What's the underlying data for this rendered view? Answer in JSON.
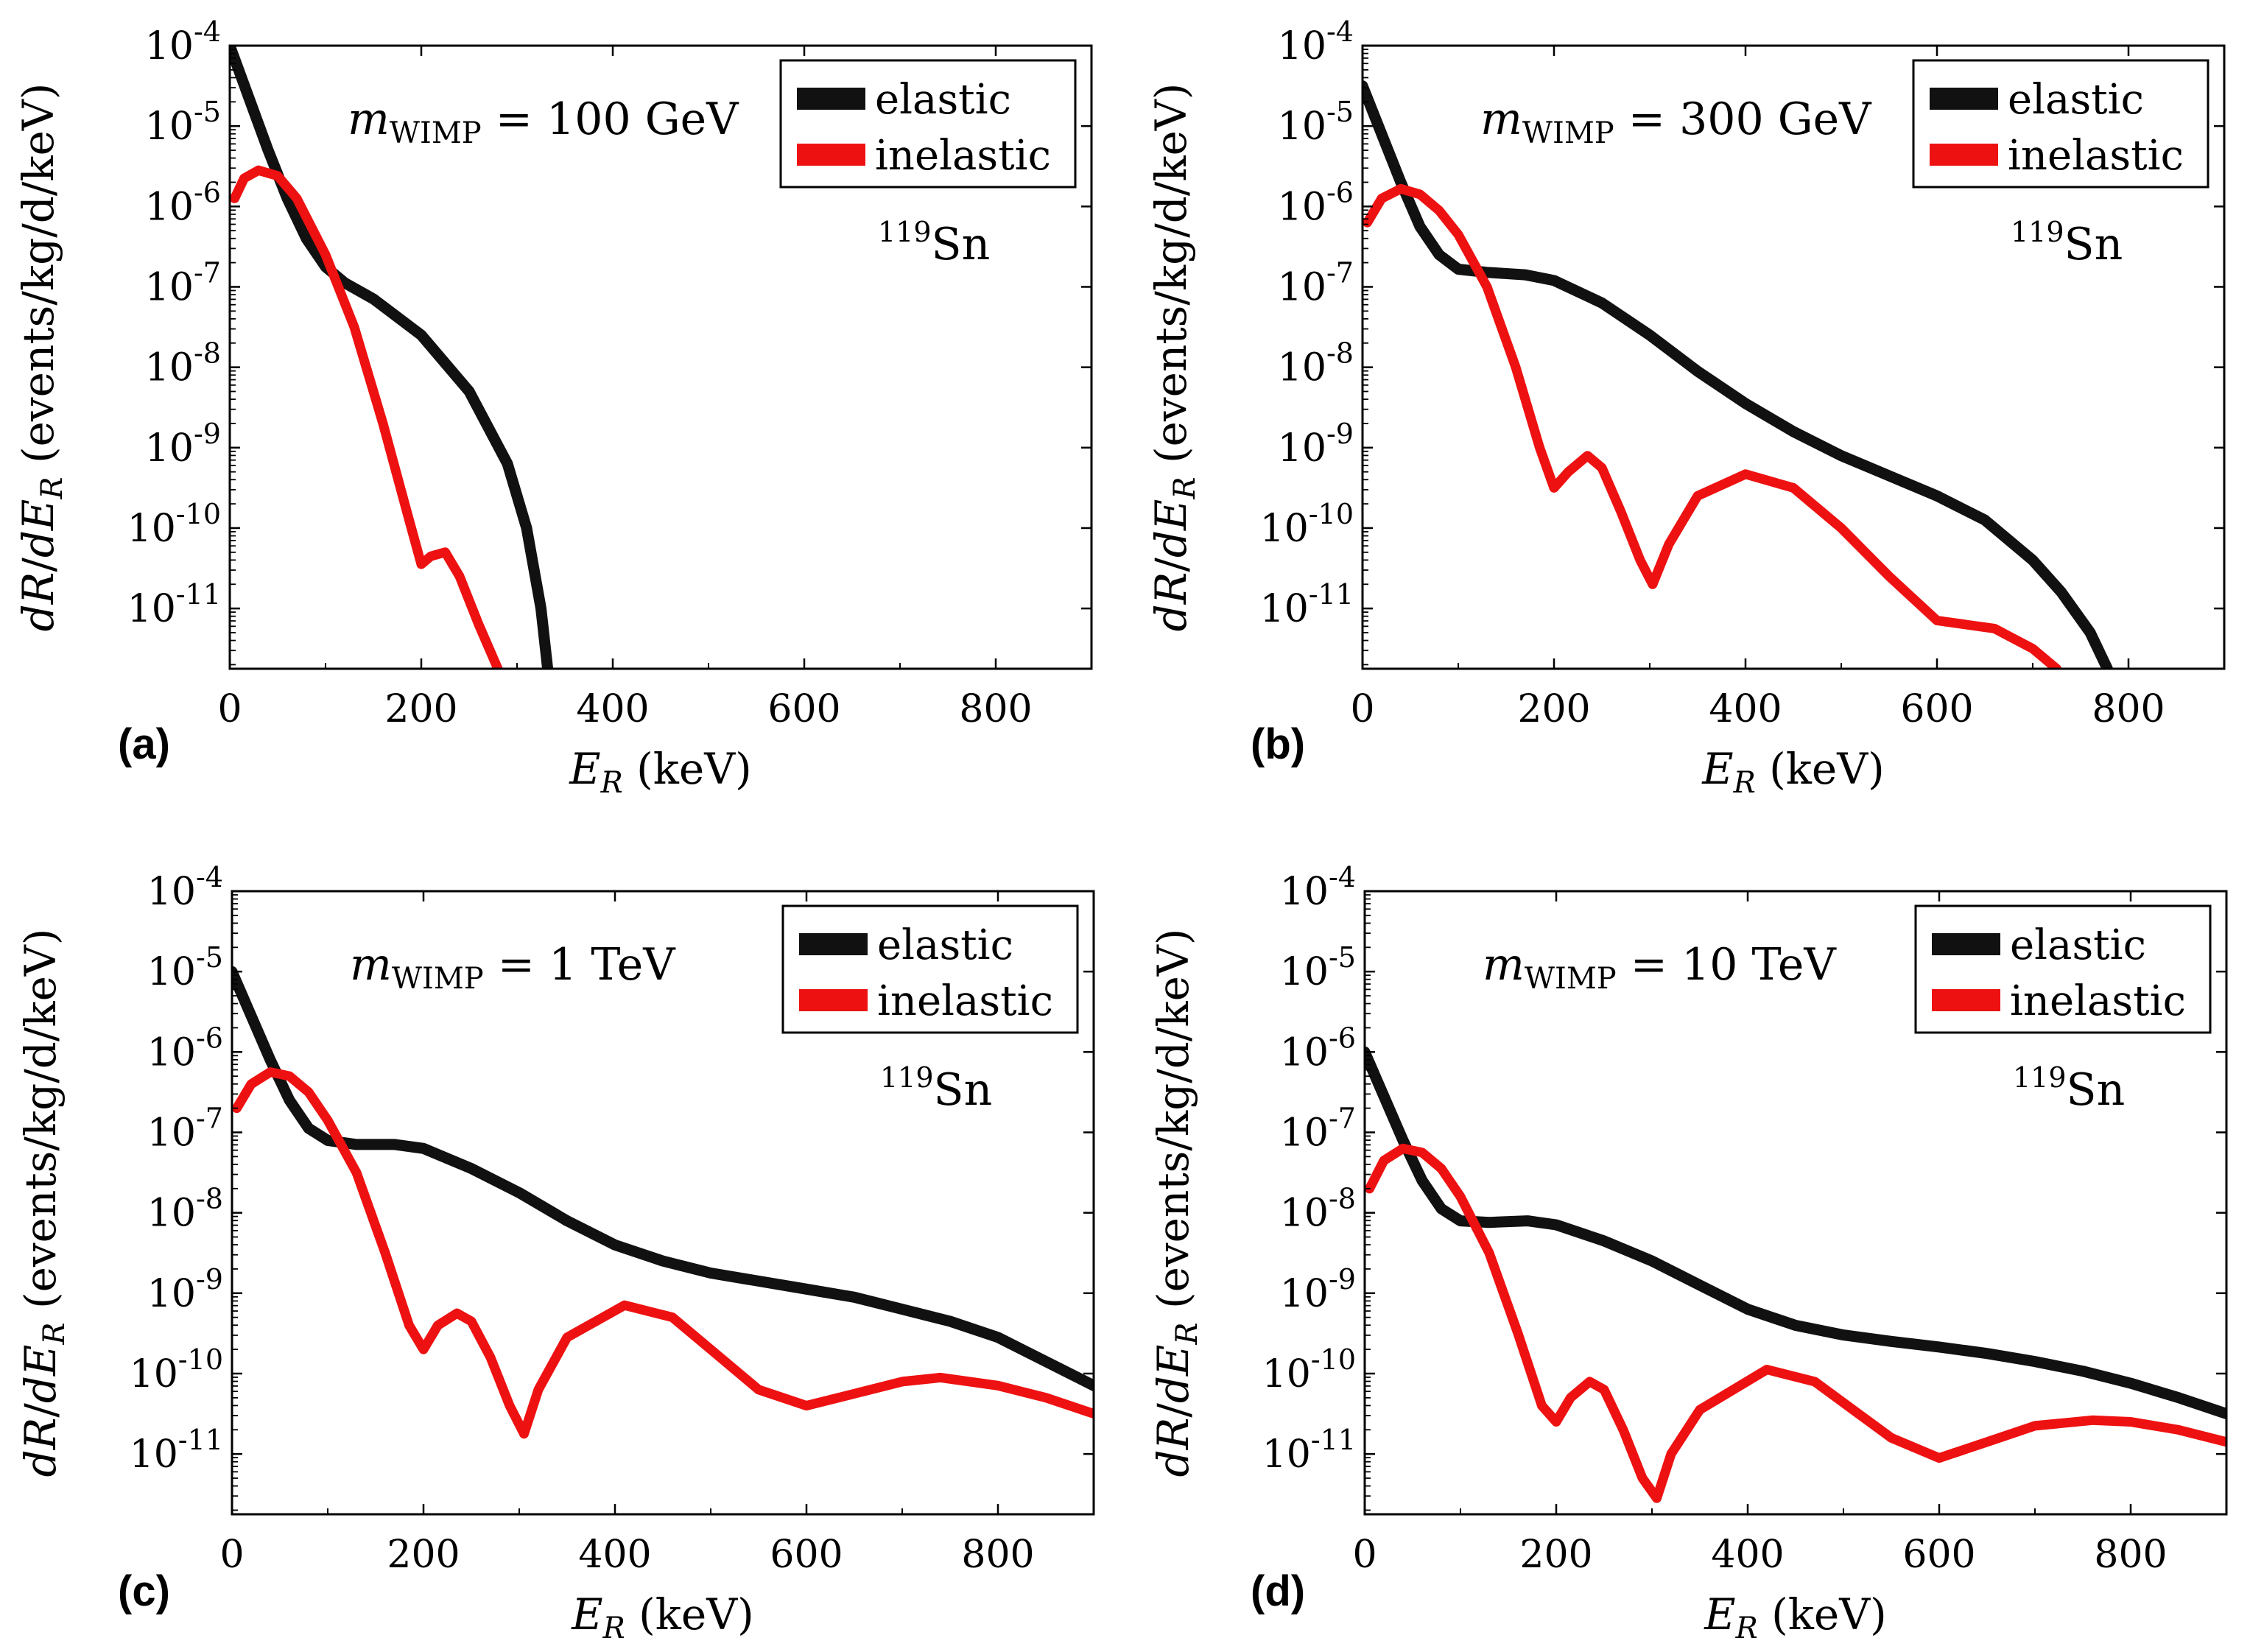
{
  "chart_data": [
    {
      "type": "line",
      "panel_label": "(a)",
      "mass_label": "m_WIMP = 100 GeV",
      "mass_value": "100",
      "mass_unit": "GeV",
      "isotope": "119Sn",
      "isotope_mass_number": "119",
      "isotope_symbol": "Sn",
      "xlabel": "E_R (keV)",
      "ylabel": "dR/dE_R (events/kg/d/keV)",
      "xlim": [
        0,
        900
      ],
      "ylim_log10": [
        -11.75,
        -4
      ],
      "xticks": [
        0,
        200,
        400,
        600,
        800
      ],
      "yticks_log10": [
        -4,
        -5,
        -6,
        -7,
        -8,
        -9,
        -10,
        -11
      ],
      "legend": [
        "elastic",
        "inelastic"
      ],
      "series": [
        {
          "name": "elastic",
          "color": "#111111",
          "x": [
            0,
            20,
            40,
            60,
            80,
            100,
            120,
            150,
            200,
            250,
            290,
            310,
            325,
            332
          ],
          "log10y": [
            -4.0,
            -4.65,
            -5.3,
            -5.9,
            -6.4,
            -6.75,
            -6.95,
            -7.15,
            -7.6,
            -8.3,
            -9.2,
            -10.0,
            -11.0,
            -11.75
          ]
        },
        {
          "name": "inelastic",
          "color": "#ee1111",
          "x": [
            5,
            15,
            30,
            50,
            70,
            100,
            130,
            160,
            185,
            200,
            210,
            225,
            240,
            260,
            280
          ],
          "log10y": [
            -5.9,
            -5.65,
            -5.55,
            -5.62,
            -5.9,
            -6.6,
            -7.5,
            -8.7,
            -9.8,
            -10.45,
            -10.35,
            -10.3,
            -10.6,
            -11.2,
            -11.75
          ]
        }
      ]
    },
    {
      "type": "line",
      "panel_label": "(b)",
      "mass_label": "m_WIMP = 300 GeV",
      "mass_value": "300",
      "mass_unit": "GeV",
      "isotope": "119Sn",
      "isotope_mass_number": "119",
      "isotope_symbol": "Sn",
      "xlabel": "E_R (keV)",
      "ylabel": "dR/dE_R (events/kg/d/keV)",
      "xlim": [
        0,
        900
      ],
      "ylim_log10": [
        -11.75,
        -4
      ],
      "xticks": [
        0,
        200,
        400,
        600,
        800
      ],
      "yticks_log10": [
        -4,
        -5,
        -6,
        -7,
        -8,
        -9,
        -10,
        -11
      ],
      "legend": [
        "elastic",
        "inelastic"
      ],
      "series": [
        {
          "name": "elastic",
          "color": "#111111",
          "x": [
            0,
            20,
            40,
            60,
            80,
            100,
            130,
            170,
            200,
            250,
            300,
            350,
            400,
            450,
            500,
            550,
            600,
            650,
            700,
            730,
            760,
            778
          ],
          "log10y": [
            -4.5,
            -5.1,
            -5.7,
            -6.25,
            -6.6,
            -6.78,
            -6.82,
            -6.85,
            -6.92,
            -7.2,
            -7.6,
            -8.05,
            -8.45,
            -8.8,
            -9.1,
            -9.35,
            -9.6,
            -9.9,
            -10.4,
            -10.8,
            -11.3,
            -11.75
          ]
        },
        {
          "name": "inelastic",
          "color": "#ee1111",
          "x": [
            5,
            20,
            40,
            60,
            80,
            100,
            130,
            160,
            185,
            200,
            215,
            235,
            250,
            270,
            290,
            303,
            320,
            350,
            400,
            450,
            500,
            550,
            600,
            630,
            660,
            700,
            725
          ],
          "log10y": [
            -6.2,
            -5.9,
            -5.78,
            -5.85,
            -6.05,
            -6.35,
            -7.0,
            -8.0,
            -9.0,
            -9.5,
            -9.3,
            -9.1,
            -9.25,
            -9.8,
            -10.4,
            -10.7,
            -10.2,
            -9.6,
            -9.33,
            -9.5,
            -10.0,
            -10.6,
            -11.15,
            -11.2,
            -11.25,
            -11.5,
            -11.75
          ]
        }
      ]
    },
    {
      "type": "line",
      "panel_label": "(c)",
      "mass_label": "m_WIMP = 1 TeV",
      "mass_value": "1",
      "mass_unit": "TeV",
      "isotope": "119Sn",
      "isotope_mass_number": "119",
      "isotope_symbol": "Sn",
      "xlabel": "E_R (keV)",
      "ylabel": "dR/dE_R (events/kg/d/keV)",
      "xlim": [
        0,
        900
      ],
      "ylim_log10": [
        -11.75,
        -4
      ],
      "xticks": [
        0,
        200,
        400,
        600,
        800
      ],
      "yticks_log10": [
        -4,
        -5,
        -6,
        -7,
        -8,
        -9,
        -10,
        -11
      ],
      "legend": [
        "elastic",
        "inelastic"
      ],
      "series": [
        {
          "name": "elastic",
          "color": "#111111",
          "x": [
            0,
            20,
            40,
            60,
            80,
            100,
            130,
            170,
            200,
            250,
            300,
            350,
            400,
            450,
            500,
            550,
            600,
            650,
            700,
            750,
            800,
            850,
            900
          ],
          "log10y": [
            -5.0,
            -5.55,
            -6.1,
            -6.6,
            -6.95,
            -7.1,
            -7.15,
            -7.15,
            -7.2,
            -7.45,
            -7.75,
            -8.1,
            -8.4,
            -8.6,
            -8.75,
            -8.85,
            -8.95,
            -9.05,
            -9.2,
            -9.35,
            -9.55,
            -9.85,
            -10.15
          ]
        },
        {
          "name": "inelastic",
          "color": "#ee1111",
          "x": [
            5,
            20,
            40,
            60,
            80,
            100,
            130,
            160,
            185,
            200,
            215,
            235,
            250,
            270,
            290,
            305,
            320,
            350,
            410,
            460,
            500,
            550,
            600,
            650,
            700,
            740,
            800,
            850,
            900
          ],
          "log10y": [
            -6.7,
            -6.4,
            -6.25,
            -6.3,
            -6.5,
            -6.85,
            -7.5,
            -8.5,
            -9.4,
            -9.7,
            -9.4,
            -9.25,
            -9.35,
            -9.8,
            -10.4,
            -10.75,
            -10.2,
            -9.55,
            -9.15,
            -9.3,
            -9.7,
            -10.2,
            -10.4,
            -10.25,
            -10.1,
            -10.05,
            -10.15,
            -10.3,
            -10.5
          ]
        }
      ]
    },
    {
      "type": "line",
      "panel_label": "(d)",
      "mass_label": "m_WIMP = 10 TeV",
      "mass_value": "10",
      "mass_unit": "TeV",
      "isotope": "119Sn",
      "isotope_mass_number": "119",
      "isotope_symbol": "Sn",
      "xlabel": "E_R (keV)",
      "ylabel": "dR/dE_R (events/kg/d/keV)",
      "xlim": [
        0,
        900
      ],
      "ylim_log10": [
        -11.75,
        -4
      ],
      "xticks": [
        0,
        200,
        400,
        600,
        800
      ],
      "yticks_log10": [
        -4,
        -5,
        -6,
        -7,
        -8,
        -9,
        -10,
        -11
      ],
      "legend": [
        "elastic",
        "inelastic"
      ],
      "series": [
        {
          "name": "elastic",
          "color": "#111111",
          "x": [
            0,
            20,
            40,
            60,
            80,
            100,
            130,
            170,
            200,
            250,
            300,
            350,
            400,
            450,
            500,
            550,
            600,
            650,
            700,
            750,
            800,
            850,
            900
          ],
          "log10y": [
            -6.0,
            -6.55,
            -7.1,
            -7.6,
            -7.95,
            -8.1,
            -8.12,
            -8.1,
            -8.15,
            -8.35,
            -8.6,
            -8.9,
            -9.2,
            -9.4,
            -9.52,
            -9.6,
            -9.67,
            -9.75,
            -9.85,
            -9.97,
            -10.12,
            -10.3,
            -10.5
          ]
        },
        {
          "name": "inelastic",
          "color": "#ee1111",
          "x": [
            5,
            20,
            40,
            60,
            80,
            100,
            130,
            160,
            185,
            200,
            215,
            235,
            250,
            270,
            290,
            305,
            320,
            350,
            420,
            470,
            510,
            550,
            600,
            650,
            700,
            760,
            800,
            850,
            900
          ],
          "log10y": [
            -7.7,
            -7.35,
            -7.2,
            -7.25,
            -7.45,
            -7.8,
            -8.5,
            -9.5,
            -10.4,
            -10.6,
            -10.3,
            -10.1,
            -10.2,
            -10.7,
            -11.3,
            -11.55,
            -11.0,
            -10.45,
            -9.95,
            -10.1,
            -10.45,
            -10.8,
            -11.05,
            -10.85,
            -10.65,
            -10.58,
            -10.6,
            -10.7,
            -10.85
          ]
        }
      ]
    }
  ],
  "colors": {
    "elastic": "#111111",
    "inelastic": "#ee1111",
    "axes": "#000000"
  }
}
